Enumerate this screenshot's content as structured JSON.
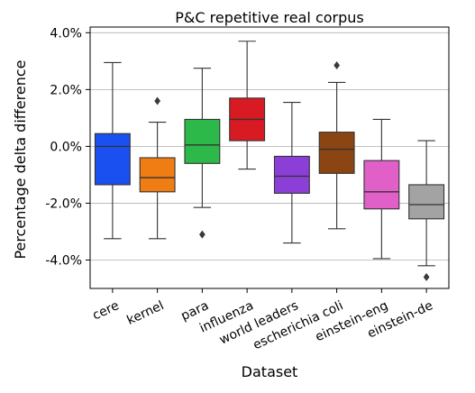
{
  "chart_data": {
    "type": "box",
    "title": "P&C repetitive real corpus",
    "xlabel": "Dataset",
    "ylabel": "Percentage delta difference",
    "ylim": [
      -5.0,
      4.2
    ],
    "grid": "horizontal",
    "yticks": [
      {
        "value": 4.0,
        "label": "4.0%"
      },
      {
        "value": 2.0,
        "label": "2.0%"
      },
      {
        "value": 0.0,
        "label": "0.0%"
      },
      {
        "value": -2.0,
        "label": "-2.0%"
      },
      {
        "value": -4.0,
        "label": "-4.0%"
      }
    ],
    "categories": [
      "cere",
      "kernel",
      "para",
      "influenza",
      "world leaders",
      "escherichia coli",
      "einstein-eng",
      "einstein-de"
    ],
    "boxes": [
      {
        "category": "cere",
        "color": "#1a4ff0",
        "whisker_low": -3.25,
        "q1": -1.35,
        "median": 0.0,
        "q3": 0.45,
        "whisker_high": 2.95,
        "outliers": []
      },
      {
        "category": "kernel",
        "color": "#f07c14",
        "whisker_low": -3.25,
        "q1": -1.6,
        "median": -1.1,
        "q3": -0.4,
        "whisker_high": 0.85,
        "outliers": [
          1.6
        ]
      },
      {
        "category": "para",
        "color": "#2db84a",
        "whisker_low": -2.15,
        "q1": -0.6,
        "median": 0.05,
        "q3": 0.95,
        "whisker_high": 2.75,
        "outliers": [
          -3.1
        ]
      },
      {
        "category": "influenza",
        "color": "#d81a23",
        "whisker_low": -0.8,
        "q1": 0.2,
        "median": 0.95,
        "q3": 1.7,
        "whisker_high": 3.7,
        "outliers": []
      },
      {
        "category": "world leaders",
        "color": "#8c3fd6",
        "whisker_low": -3.4,
        "q1": -1.65,
        "median": -1.05,
        "q3": -0.35,
        "whisker_high": 1.55,
        "outliers": []
      },
      {
        "category": "escherichia coli",
        "color": "#8b4513",
        "whisker_low": -2.9,
        "q1": -0.95,
        "median": -0.1,
        "q3": 0.5,
        "whisker_high": 2.25,
        "outliers": [
          2.85
        ]
      },
      {
        "category": "einstein-eng",
        "color": "#e060c8",
        "whisker_low": -3.95,
        "q1": -2.2,
        "median": -1.6,
        "q3": -0.5,
        "whisker_high": 0.95,
        "outliers": []
      },
      {
        "category": "einstein-de",
        "color": "#a3a3a3",
        "whisker_low": -4.2,
        "q1": -2.55,
        "median": -2.05,
        "q3": -1.35,
        "whisker_high": 0.2,
        "outliers": [
          -4.6
        ]
      }
    ]
  }
}
